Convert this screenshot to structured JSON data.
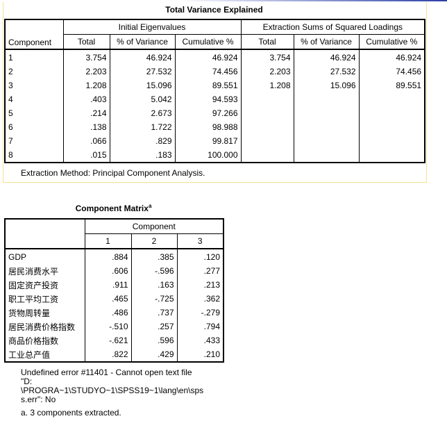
{
  "variance": {
    "title": "Total Variance Explained",
    "component_header": "Component",
    "group_initial": "Initial Eigenvalues",
    "group_extraction": "Extraction Sums of Squared Loadings",
    "subheaders": [
      "Total",
      "% of Variance",
      "Cumulative %",
      "Total",
      "% of Variance",
      "Cumulative %"
    ],
    "rows": [
      [
        "1",
        "3.754",
        "46.924",
        "46.924",
        "3.754",
        "46.924",
        "46.924"
      ],
      [
        "2",
        "2.203",
        "27.532",
        "74.456",
        "2.203",
        "27.532",
        "74.456"
      ],
      [
        "3",
        "1.208",
        "15.096",
        "89.551",
        "1.208",
        "15.096",
        "89.551"
      ],
      [
        "4",
        ".403",
        "5.042",
        "94.593",
        "",
        "",
        ""
      ],
      [
        "5",
        ".214",
        "2.673",
        "97.266",
        "",
        "",
        ""
      ],
      [
        "6",
        ".138",
        "1.722",
        "98.988",
        "",
        "",
        ""
      ],
      [
        "7",
        ".066",
        ".829",
        "99.817",
        "",
        "",
        ""
      ],
      [
        "8",
        ".015",
        ".183",
        "100.000",
        "",
        "",
        ""
      ]
    ],
    "footnote": "Extraction Method: Principal Component Analysis."
  },
  "matrix": {
    "title": "Component Matrix",
    "title_sup": "a",
    "group_header": "Component",
    "subheaders": [
      "1",
      "2",
      "3"
    ],
    "rows": [
      [
        "GDP",
        ".884",
        ".385",
        ".120"
      ],
      [
        "居民消费水平",
        ".606",
        "-.596",
        ".277"
      ],
      [
        "固定资产投资",
        ".911",
        ".163",
        ".213"
      ],
      [
        "职工平均工资",
        ".465",
        "-.725",
        ".362"
      ],
      [
        "货物周转量",
        ".486",
        ".737",
        "-.279"
      ],
      [
        "居民消费价格指数",
        "-.510",
        ".257",
        ".794"
      ],
      [
        "商品价格指数",
        "-.621",
        ".596",
        ".433"
      ],
      [
        "工业总产值",
        ".822",
        ".429",
        ".210"
      ]
    ],
    "error_lines": [
      "Undefined error #11401 - Cannot open text file",
      "\"D:",
      "\\PROGRA~1\\STUDYO~1\\SPSS19~1\\lang\\en\\sps",
      "s.err\": No"
    ],
    "footnote": "a. 3 components extracted."
  }
}
